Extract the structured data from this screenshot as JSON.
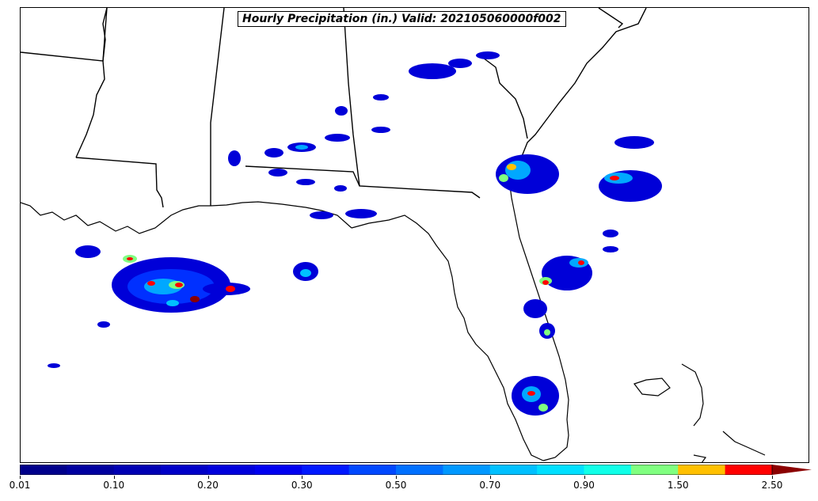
{
  "title": "Hourly Precipitation (in.) Valid: 202105060000f002",
  "colorbar": {
    "colors": [
      "#00008b",
      "#00009f",
      "#0000b3",
      "#0000c8",
      "#0000dc",
      "#0000f0",
      "#0018ff",
      "#0048ff",
      "#0070ff",
      "#0098ff",
      "#00c0ff",
      "#00e0ff",
      "#10ffe8",
      "#80ff80",
      "#ffc000",
      "#ff0000"
    ],
    "extend_color": "#8b0000",
    "tick_labels": [
      "0.01",
      "0.10",
      "0.20",
      "0.30",
      "0.50",
      "0.70",
      "0.90",
      "1.50",
      "2.50"
    ]
  },
  "map": {
    "region": "US Gulf Coast / Southeast",
    "states_visible": [
      "Louisiana",
      "Mississippi",
      "Alabama",
      "Georgia",
      "Florida",
      "South Carolina"
    ],
    "precip_colors": {
      "light": "#0000d8",
      "moderate": "#00a8ff",
      "heavy": "#80ff80",
      "very_heavy": "#ff0000",
      "extreme": "#8b0000"
    }
  }
}
